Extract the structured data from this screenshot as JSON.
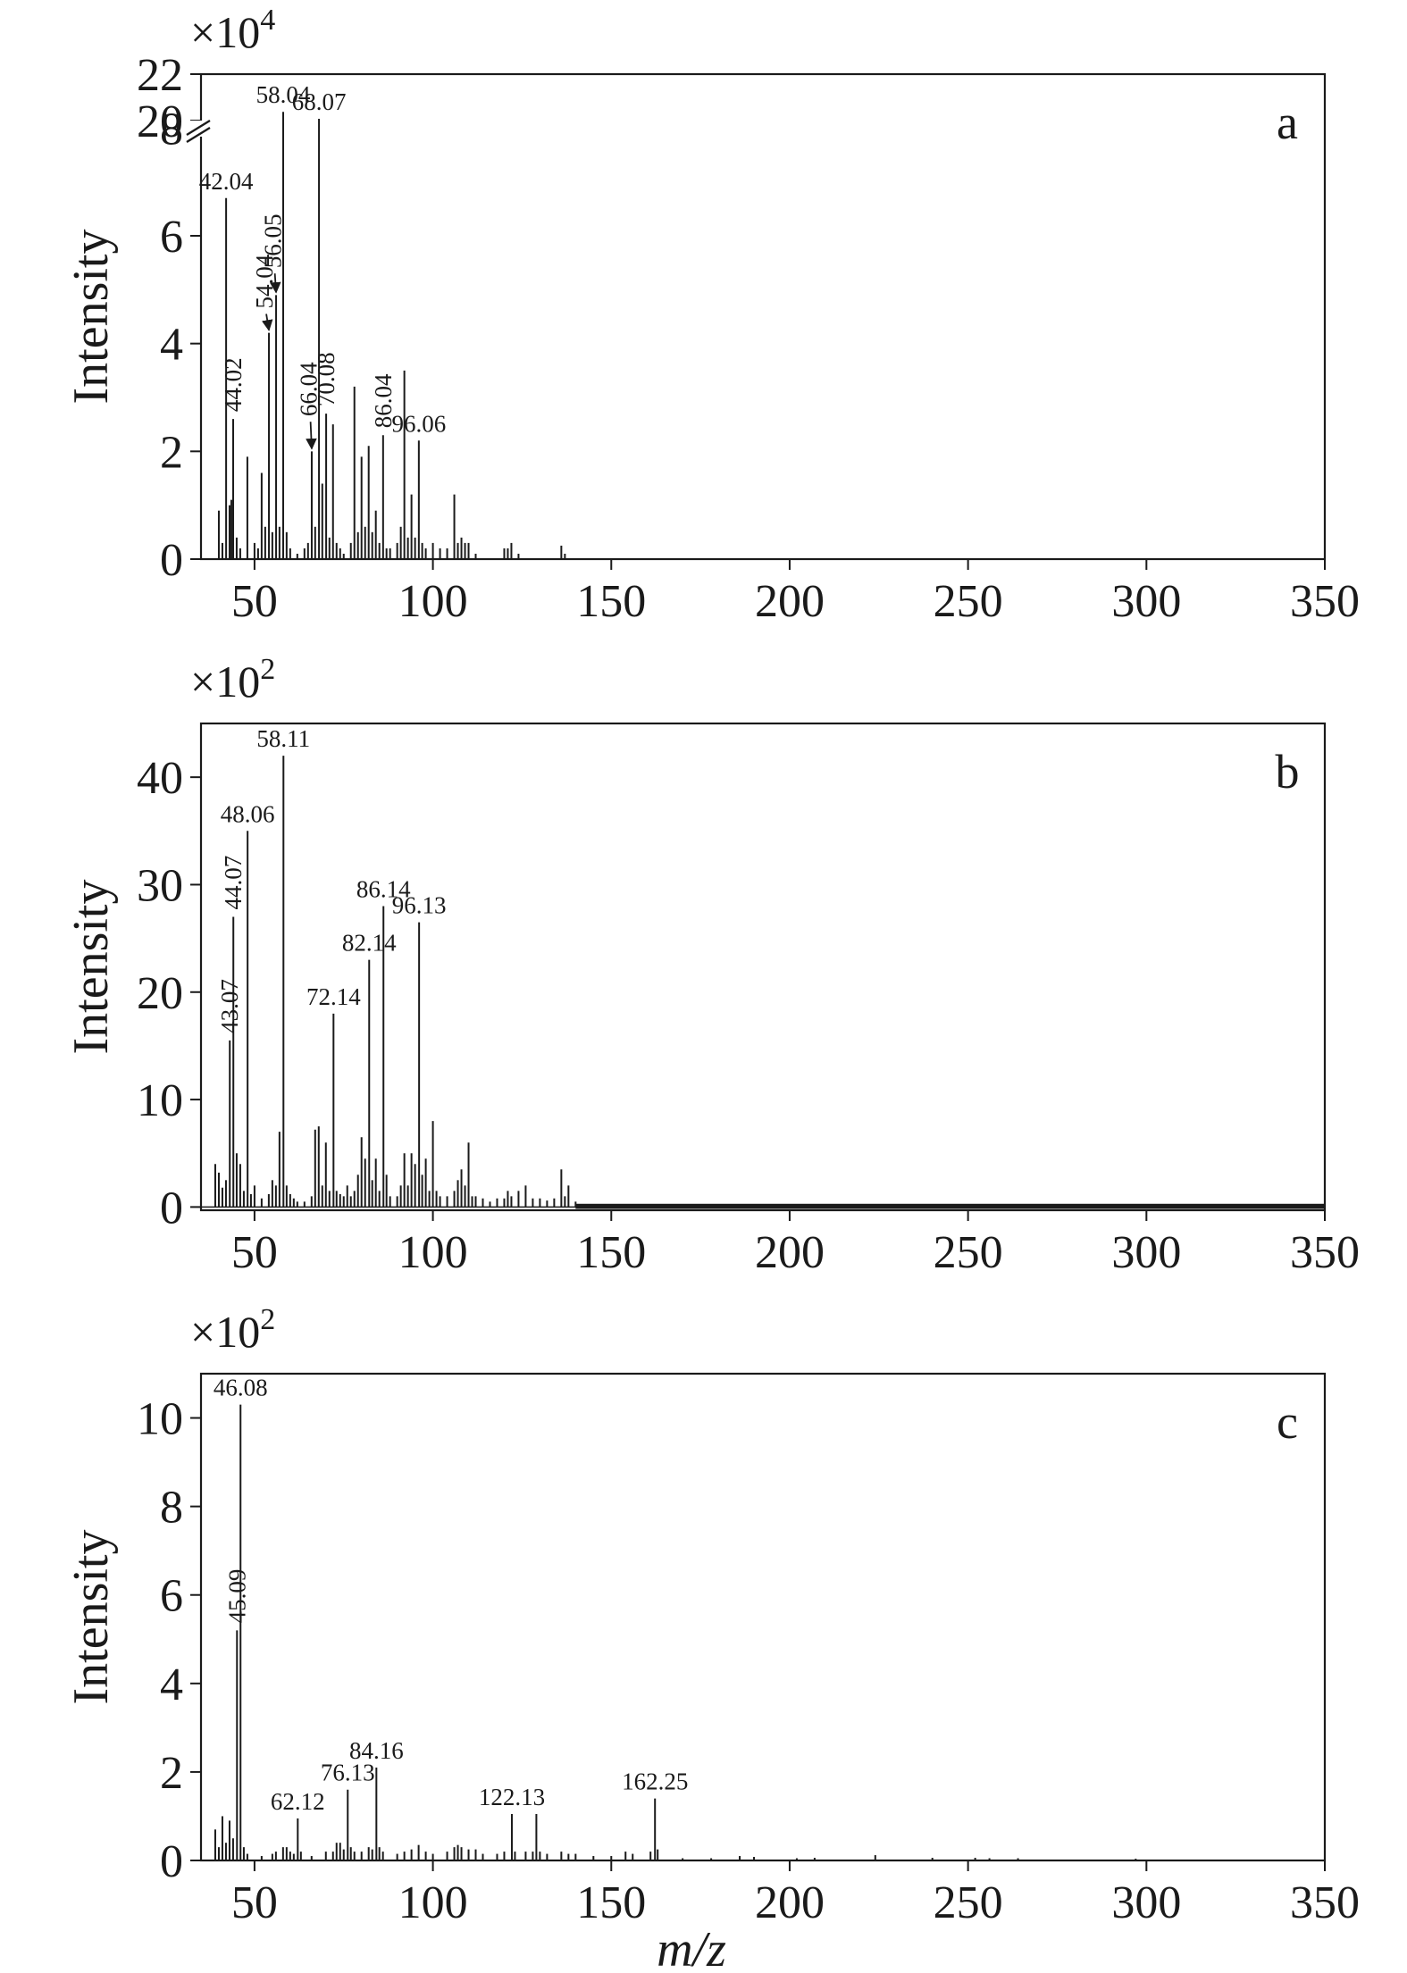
{
  "chart_data": [
    {
      "type": "bar",
      "panel": "a",
      "ylabel": "Intensity",
      "y_multiplier": "×10",
      "y_exponent": "4",
      "xlim": [
        35,
        350
      ],
      "xticks": [
        50,
        100,
        150,
        200,
        250,
        300,
        350
      ],
      "ylim": [
        0,
        9
      ],
      "yticks": [
        0,
        2,
        4,
        6,
        8
      ],
      "broken_axis_ticks": [
        "20",
        "22"
      ],
      "tallest_peak_intensity": 20.0,
      "peaks": [
        {
          "mz": 40,
          "intensity": 0.9
        },
        {
          "mz": 41,
          "intensity": 0.3
        },
        {
          "mz": 42.04,
          "intensity": 6.7,
          "label": "42.04"
        },
        {
          "mz": 43,
          "intensity": 1.0
        },
        {
          "mz": 43.5,
          "intensity": 1.1
        },
        {
          "mz": 44.02,
          "intensity": 2.6,
          "label": "44.02"
        },
        {
          "mz": 45,
          "intensity": 0.4
        },
        {
          "mz": 46,
          "intensity": 0.2
        },
        {
          "mz": 48,
          "intensity": 1.9
        },
        {
          "mz": 50,
          "intensity": 0.3
        },
        {
          "mz": 51,
          "intensity": 0.2
        },
        {
          "mz": 52,
          "intensity": 1.6
        },
        {
          "mz": 53,
          "intensity": 0.6
        },
        {
          "mz": 54.04,
          "intensity": 4.2,
          "label": "54.04"
        },
        {
          "mz": 55,
          "intensity": 0.5
        },
        {
          "mz": 56.05,
          "intensity": 4.9,
          "label": "56.05"
        },
        {
          "mz": 57,
          "intensity": 0.6
        },
        {
          "mz": 58.04,
          "intensity": 8.3,
          "label": "58.04"
        },
        {
          "mz": 59,
          "intensity": 0.5
        },
        {
          "mz": 60,
          "intensity": 0.2
        },
        {
          "mz": 62,
          "intensity": 0.1
        },
        {
          "mz": 64,
          "intensity": 0.2
        },
        {
          "mz": 65,
          "intensity": 0.3
        },
        {
          "mz": 66.04,
          "intensity": 2.0,
          "label": "66.04"
        },
        {
          "mz": 67,
          "intensity": 0.6
        },
        {
          "mz": 68.07,
          "intensity": 20.0,
          "label": "68.07"
        },
        {
          "mz": 69,
          "intensity": 1.4
        },
        {
          "mz": 70.08,
          "intensity": 2.7,
          "label": "70.08"
        },
        {
          "mz": 71,
          "intensity": 0.4
        },
        {
          "mz": 72,
          "intensity": 2.5
        },
        {
          "mz": 73,
          "intensity": 0.3
        },
        {
          "mz": 74,
          "intensity": 0.2
        },
        {
          "mz": 75,
          "intensity": 0.1
        },
        {
          "mz": 77,
          "intensity": 0.3
        },
        {
          "mz": 78,
          "intensity": 3.2
        },
        {
          "mz": 79,
          "intensity": 0.5
        },
        {
          "mz": 80,
          "intensity": 1.9
        },
        {
          "mz": 81,
          "intensity": 0.6
        },
        {
          "mz": 82,
          "intensity": 2.1
        },
        {
          "mz": 83,
          "intensity": 0.5
        },
        {
          "mz": 84,
          "intensity": 0.9
        },
        {
          "mz": 85,
          "intensity": 0.3
        },
        {
          "mz": 86.04,
          "intensity": 2.3,
          "label": "86.04"
        },
        {
          "mz": 87,
          "intensity": 0.2
        },
        {
          "mz": 88,
          "intensity": 0.2
        },
        {
          "mz": 90,
          "intensity": 0.3
        },
        {
          "mz": 91,
          "intensity": 0.6
        },
        {
          "mz": 92,
          "intensity": 3.5
        },
        {
          "mz": 93,
          "intensity": 0.4
        },
        {
          "mz": 94,
          "intensity": 1.2
        },
        {
          "mz": 95,
          "intensity": 0.4
        },
        {
          "mz": 96.06,
          "intensity": 2.2,
          "label": "96.06"
        },
        {
          "mz": 97,
          "intensity": 0.3
        },
        {
          "mz": 98,
          "intensity": 0.2
        },
        {
          "mz": 100,
          "intensity": 0.3
        },
        {
          "mz": 102,
          "intensity": 0.2
        },
        {
          "mz": 104,
          "intensity": 0.2
        },
        {
          "mz": 106,
          "intensity": 1.2
        },
        {
          "mz": 107,
          "intensity": 0.3
        },
        {
          "mz": 108,
          "intensity": 0.4
        },
        {
          "mz": 109,
          "intensity": 0.3
        },
        {
          "mz": 110,
          "intensity": 0.3
        },
        {
          "mz": 112,
          "intensity": 0.1
        },
        {
          "mz": 120,
          "intensity": 0.2
        },
        {
          "mz": 121,
          "intensity": 0.2
        },
        {
          "mz": 122,
          "intensity": 0.3
        },
        {
          "mz": 124,
          "intensity": 0.1
        },
        {
          "mz": 136,
          "intensity": 0.25
        },
        {
          "mz": 137,
          "intensity": 0.1
        }
      ],
      "arrows": [
        {
          "label": "54.04",
          "tx": 52.8,
          "ty": 4.55,
          "hx": 54.04,
          "hy": 4.25
        },
        {
          "label": "56.05",
          "tx": 55.2,
          "ty": 5.3,
          "hx": 56.05,
          "hy": 4.95
        },
        {
          "label": "66.04",
          "tx": 65.2,
          "ty": 2.55,
          "hx": 66.04,
          "hy": 2.05
        }
      ]
    },
    {
      "type": "bar",
      "panel": "b",
      "ylabel": "Intensity",
      "y_multiplier": "×10",
      "y_exponent": "2",
      "xlim": [
        35,
        350
      ],
      "xticks": [
        50,
        100,
        150,
        200,
        250,
        300,
        350
      ],
      "ylim": [
        -0.3,
        45
      ],
      "yticks": [
        0,
        10,
        20,
        30,
        40
      ],
      "noise_floor": {
        "from_mz": 140,
        "to_mz": 350,
        "level": 0.3
      },
      "peaks": [
        {
          "mz": 39,
          "intensity": 4.0
        },
        {
          "mz": 40,
          "intensity": 3.2
        },
        {
          "mz": 41,
          "intensity": 1.8
        },
        {
          "mz": 42,
          "intensity": 2.5
        },
        {
          "mz": 43.07,
          "intensity": 15.5,
          "label": "43.07"
        },
        {
          "mz": 44.07,
          "intensity": 27.0,
          "label": "44.07"
        },
        {
          "mz": 45,
          "intensity": 5.0
        },
        {
          "mz": 46,
          "intensity": 4.0
        },
        {
          "mz": 47,
          "intensity": 1.5
        },
        {
          "mz": 48.06,
          "intensity": 35.0,
          "label": "48.06"
        },
        {
          "mz": 49,
          "intensity": 1.2
        },
        {
          "mz": 50,
          "intensity": 2.0
        },
        {
          "mz": 52,
          "intensity": 0.8
        },
        {
          "mz": 54,
          "intensity": 1.2
        },
        {
          "mz": 55,
          "intensity": 2.5
        },
        {
          "mz": 56,
          "intensity": 2.0
        },
        {
          "mz": 57,
          "intensity": 7.0
        },
        {
          "mz": 58.11,
          "intensity": 42.0,
          "label": "58.11"
        },
        {
          "mz": 59,
          "intensity": 2.0
        },
        {
          "mz": 60,
          "intensity": 1.2
        },
        {
          "mz": 61,
          "intensity": 0.8
        },
        {
          "mz": 62,
          "intensity": 0.5
        },
        {
          "mz": 64,
          "intensity": 0.5
        },
        {
          "mz": 66,
          "intensity": 1.0
        },
        {
          "mz": 67,
          "intensity": 7.2
        },
        {
          "mz": 68,
          "intensity": 7.5
        },
        {
          "mz": 69,
          "intensity": 2.0
        },
        {
          "mz": 70,
          "intensity": 6.0
        },
        {
          "mz": 71,
          "intensity": 1.5
        },
        {
          "mz": 72.14,
          "intensity": 18.0,
          "label": "72.14"
        },
        {
          "mz": 73,
          "intensity": 1.5
        },
        {
          "mz": 74,
          "intensity": 1.2
        },
        {
          "mz": 75,
          "intensity": 1.0
        },
        {
          "mz": 76,
          "intensity": 2.0
        },
        {
          "mz": 77,
          "intensity": 1.0
        },
        {
          "mz": 78,
          "intensity": 1.5
        },
        {
          "mz": 79,
          "intensity": 3.0
        },
        {
          "mz": 80,
          "intensity": 6.5
        },
        {
          "mz": 81,
          "intensity": 4.5
        },
        {
          "mz": 82.14,
          "intensity": 23.0,
          "label": "82.14"
        },
        {
          "mz": 83,
          "intensity": 2.5
        },
        {
          "mz": 84,
          "intensity": 4.5
        },
        {
          "mz": 85,
          "intensity": 1.5
        },
        {
          "mz": 86.14,
          "intensity": 28.0,
          "label": "86.14"
        },
        {
          "mz": 87,
          "intensity": 3.0
        },
        {
          "mz": 88,
          "intensity": 1.0
        },
        {
          "mz": 90,
          "intensity": 1.0
        },
        {
          "mz": 91,
          "intensity": 2.0
        },
        {
          "mz": 92,
          "intensity": 5.0
        },
        {
          "mz": 93,
          "intensity": 2.0
        },
        {
          "mz": 94,
          "intensity": 5.0
        },
        {
          "mz": 95,
          "intensity": 4.0
        },
        {
          "mz": 96.13,
          "intensity": 26.5,
          "label": "96.13"
        },
        {
          "mz": 97,
          "intensity": 3.0
        },
        {
          "mz": 98,
          "intensity": 4.5
        },
        {
          "mz": 99,
          "intensity": 1.5
        },
        {
          "mz": 100,
          "intensity": 8.0
        },
        {
          "mz": 101,
          "intensity": 1.5
        },
        {
          "mz": 102,
          "intensity": 1.0
        },
        {
          "mz": 104,
          "intensity": 1.0
        },
        {
          "mz": 106,
          "intensity": 1.5
        },
        {
          "mz": 107,
          "intensity": 2.5
        },
        {
          "mz": 108,
          "intensity": 3.5
        },
        {
          "mz": 109,
          "intensity": 2.0
        },
        {
          "mz": 110,
          "intensity": 6.0
        },
        {
          "mz": 111,
          "intensity": 1.0
        },
        {
          "mz": 112,
          "intensity": 1.0
        },
        {
          "mz": 114,
          "intensity": 0.8
        },
        {
          "mz": 116,
          "intensity": 0.5
        },
        {
          "mz": 118,
          "intensity": 0.8
        },
        {
          "mz": 120,
          "intensity": 0.8
        },
        {
          "mz": 121,
          "intensity": 1.5
        },
        {
          "mz": 122,
          "intensity": 1.0
        },
        {
          "mz": 124,
          "intensity": 1.5
        },
        {
          "mz": 126,
          "intensity": 2.0
        },
        {
          "mz": 128,
          "intensity": 0.8
        },
        {
          "mz": 130,
          "intensity": 0.8
        },
        {
          "mz": 132,
          "intensity": 0.6
        },
        {
          "mz": 134,
          "intensity": 0.8
        },
        {
          "mz": 136,
          "intensity": 3.5
        },
        {
          "mz": 137,
          "intensity": 1.0
        },
        {
          "mz": 138,
          "intensity": 2.0
        },
        {
          "mz": 140,
          "intensity": 0.5
        }
      ]
    },
    {
      "type": "bar",
      "panel": "c",
      "ylabel": "Intensity",
      "xlabel_italic": "m/z",
      "y_multiplier": "×10",
      "y_exponent": "2",
      "xlim": [
        35,
        350
      ],
      "xticks": [
        50,
        100,
        150,
        200,
        250,
        300,
        350
      ],
      "ylim": [
        0,
        11
      ],
      "yticks": [
        0,
        2,
        4,
        6,
        8,
        10
      ],
      "peaks": [
        {
          "mz": 39,
          "intensity": 0.7
        },
        {
          "mz": 40,
          "intensity": 0.3
        },
        {
          "mz": 41,
          "intensity": 1.0
        },
        {
          "mz": 42,
          "intensity": 0.4
        },
        {
          "mz": 43,
          "intensity": 0.9
        },
        {
          "mz": 44,
          "intensity": 0.5
        },
        {
          "mz": 45.09,
          "intensity": 5.2,
          "label": "45.09"
        },
        {
          "mz": 46.08,
          "intensity": 10.3,
          "label": "46.08"
        },
        {
          "mz": 47,
          "intensity": 0.3
        },
        {
          "mz": 48,
          "intensity": 0.15
        },
        {
          "mz": 52,
          "intensity": 0.1
        },
        {
          "mz": 55,
          "intensity": 0.15
        },
        {
          "mz": 56,
          "intensity": 0.2
        },
        {
          "mz": 58,
          "intensity": 0.3
        },
        {
          "mz": 59,
          "intensity": 0.3
        },
        {
          "mz": 60,
          "intensity": 0.2
        },
        {
          "mz": 61,
          "intensity": 0.15
        },
        {
          "mz": 62.12,
          "intensity": 0.95,
          "label": "62.12"
        },
        {
          "mz": 63,
          "intensity": 0.2
        },
        {
          "mz": 66,
          "intensity": 0.1
        },
        {
          "mz": 70,
          "intensity": 0.2
        },
        {
          "mz": 72,
          "intensity": 0.2
        },
        {
          "mz": 73,
          "intensity": 0.4
        },
        {
          "mz": 74,
          "intensity": 0.4
        },
        {
          "mz": 75,
          "intensity": 0.25
        },
        {
          "mz": 76.13,
          "intensity": 1.6,
          "label": "76.13"
        },
        {
          "mz": 77,
          "intensity": 0.3
        },
        {
          "mz": 78,
          "intensity": 0.2
        },
        {
          "mz": 80,
          "intensity": 0.2
        },
        {
          "mz": 82,
          "intensity": 0.3
        },
        {
          "mz": 83,
          "intensity": 0.25
        },
        {
          "mz": 84.16,
          "intensity": 2.1,
          "label": "84.16"
        },
        {
          "mz": 85,
          "intensity": 0.3
        },
        {
          "mz": 86,
          "intensity": 0.2
        },
        {
          "mz": 90,
          "intensity": 0.15
        },
        {
          "mz": 92,
          "intensity": 0.2
        },
        {
          "mz": 94,
          "intensity": 0.25
        },
        {
          "mz": 96,
          "intensity": 0.35
        },
        {
          "mz": 98,
          "intensity": 0.2
        },
        {
          "mz": 100,
          "intensity": 0.15
        },
        {
          "mz": 104,
          "intensity": 0.2
        },
        {
          "mz": 106,
          "intensity": 0.3
        },
        {
          "mz": 107,
          "intensity": 0.35
        },
        {
          "mz": 108,
          "intensity": 0.3
        },
        {
          "mz": 110,
          "intensity": 0.25
        },
        {
          "mz": 112,
          "intensity": 0.25
        },
        {
          "mz": 114,
          "intensity": 0.15
        },
        {
          "mz": 118,
          "intensity": 0.15
        },
        {
          "mz": 120,
          "intensity": 0.2
        },
        {
          "mz": 122.13,
          "intensity": 1.05,
          "label": "122.13"
        },
        {
          "mz": 123,
          "intensity": 0.2
        },
        {
          "mz": 126,
          "intensity": 0.2
        },
        {
          "mz": 128,
          "intensity": 0.2
        },
        {
          "mz": 129,
          "intensity": 1.05
        },
        {
          "mz": 130,
          "intensity": 0.2
        },
        {
          "mz": 132,
          "intensity": 0.15
        },
        {
          "mz": 136,
          "intensity": 0.2
        },
        {
          "mz": 138,
          "intensity": 0.15
        },
        {
          "mz": 140,
          "intensity": 0.15
        },
        {
          "mz": 145,
          "intensity": 0.1
        },
        {
          "mz": 150,
          "intensity": 0.1
        },
        {
          "mz": 154,
          "intensity": 0.2
        },
        {
          "mz": 156,
          "intensity": 0.15
        },
        {
          "mz": 161,
          "intensity": 0.2
        },
        {
          "mz": 162.25,
          "intensity": 1.4,
          "label": "162.25"
        },
        {
          "mz": 163,
          "intensity": 0.25
        },
        {
          "mz": 170,
          "intensity": 0.05
        },
        {
          "mz": 178,
          "intensity": 0.05
        },
        {
          "mz": 186,
          "intensity": 0.1
        },
        {
          "mz": 190,
          "intensity": 0.08
        },
        {
          "mz": 202,
          "intensity": 0.05
        },
        {
          "mz": 207,
          "intensity": 0.06
        },
        {
          "mz": 224,
          "intensity": 0.12
        },
        {
          "mz": 240,
          "intensity": 0.06
        },
        {
          "mz": 252,
          "intensity": 0.06
        },
        {
          "mz": 256,
          "intensity": 0.05
        },
        {
          "mz": 264,
          "intensity": 0.05
        },
        {
          "mz": 297,
          "intensity": 0.04
        }
      ]
    }
  ],
  "colors": {
    "ink": "#1a1a1a",
    "background": "#ffffff"
  }
}
